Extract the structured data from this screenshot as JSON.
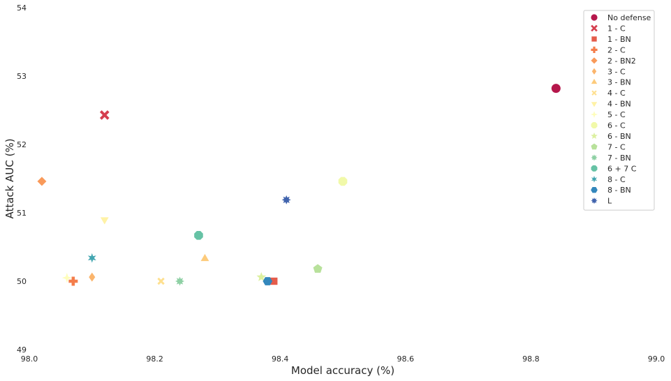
{
  "chart_data": {
    "type": "scatter",
    "title": "",
    "xlabel": "Model accuracy (%)",
    "ylabel": "Attack AUC (%)",
    "xlim": [
      98.0,
      99.0
    ],
    "ylim": [
      49,
      54
    ],
    "xticks": [
      "98.0",
      "98.2",
      "98.4",
      "98.6",
      "98.8",
      "99.0"
    ],
    "xtick_values": [
      98.0,
      98.2,
      98.4,
      98.6,
      98.8,
      99.0
    ],
    "yticks": [
      "49",
      "50",
      "51",
      "52",
      "53",
      "54"
    ],
    "ytick_values": [
      49,
      50,
      51,
      52,
      53,
      54
    ],
    "grid": false,
    "legend_position": "top-right",
    "series": [
      {
        "name": "No defense",
        "x": 98.84,
        "y": 52.82,
        "color": "#b5174b",
        "marker": "circle"
      },
      {
        "name": "1 - C",
        "x": 98.12,
        "y": 52.43,
        "color": "#d53e4f",
        "marker": "x"
      },
      {
        "name": "1 - BN",
        "x": 98.39,
        "y": 50.0,
        "color": "#e55c4b",
        "marker": "square"
      },
      {
        "name": "2 - C",
        "x": 98.07,
        "y": 50.0,
        "color": "#f47d4b",
        "marker": "plus"
      },
      {
        "name": "2 - BN2",
        "x": 98.02,
        "y": 51.46,
        "color": "#f99a5a",
        "marker": "diamond"
      },
      {
        "name": "3 - C",
        "x": 98.1,
        "y": 50.06,
        "color": "#fbb56c",
        "marker": "thin_diamond"
      },
      {
        "name": "3 - BN",
        "x": 98.28,
        "y": 50.33,
        "color": "#fdcb7b",
        "marker": "triangle_up"
      },
      {
        "name": "4 - C",
        "x": 98.21,
        "y": 50.0,
        "color": "#fee090",
        "marker": "x_small"
      },
      {
        "name": "4 - BN",
        "x": 98.12,
        "y": 50.9,
        "color": "#fff2a6",
        "marker": "triangle_down"
      },
      {
        "name": "5 - C",
        "x": 98.06,
        "y": 50.05,
        "color": "#fefdbb",
        "marker": "star4"
      },
      {
        "name": "6 - C",
        "x": 98.5,
        "y": 51.46,
        "color": "#f1f9a9",
        "marker": "octagon"
      },
      {
        "name": "6 - BN",
        "x": 98.37,
        "y": 50.06,
        "color": "#dcf0a0",
        "marker": "star5"
      },
      {
        "name": "7 - C",
        "x": 98.46,
        "y": 50.18,
        "color": "#b8e19b",
        "marker": "pentagon"
      },
      {
        "name": "7 - BN",
        "x": 98.24,
        "y": 50.0,
        "color": "#8ed0a4",
        "marker": "star8"
      },
      {
        "name": "6 + 7 C",
        "x": 98.27,
        "y": 50.67,
        "color": "#66c2a5",
        "marker": "octagon"
      },
      {
        "name": "8 - C",
        "x": 98.1,
        "y": 50.34,
        "color": "#44a6b1",
        "marker": "star6"
      },
      {
        "name": "8 - BN",
        "x": 98.38,
        "y": 50.0,
        "color": "#3387bc",
        "marker": "hexagon"
      },
      {
        "name": "L",
        "x": 98.41,
        "y": 51.19,
        "color": "#4063ad",
        "marker": "star8"
      }
    ]
  }
}
